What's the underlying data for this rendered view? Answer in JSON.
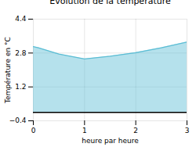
{
  "chart_data": {
    "type": "area",
    "title": "Evolution de la température",
    "xlabel": "heure par heure",
    "ylabel": "Température en °C",
    "x": [
      0,
      0.1,
      0.5,
      1.0,
      1.5,
      2.0,
      2.5,
      3.0
    ],
    "values": [
      3.1,
      3.05,
      2.75,
      2.52,
      2.65,
      2.82,
      3.05,
      3.32
    ],
    "color": "#5bbdd4",
    "xlim": [
      0,
      3
    ],
    "ylim": [
      -0.4,
      4.4
    ],
    "xticks": [
      0,
      1,
      2,
      3
    ],
    "yticks": [
      -0.4,
      1.2,
      2.8,
      4.4
    ],
    "grid": true
  }
}
